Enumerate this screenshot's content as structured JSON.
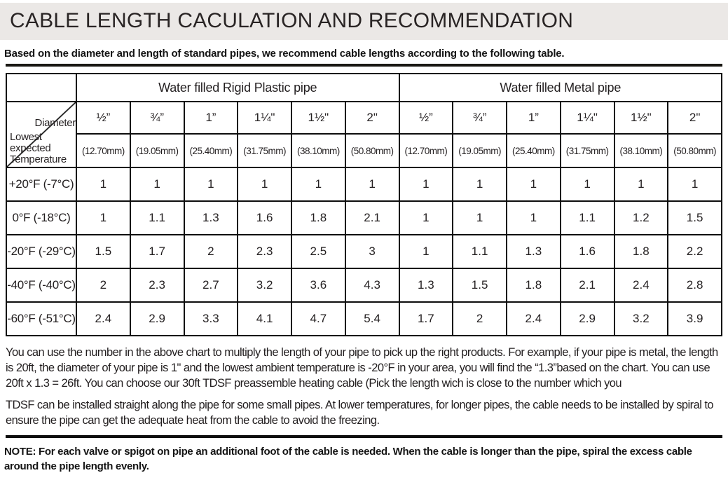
{
  "header": {
    "title": "CABLE LENGTH CACULATION AND RECOMMENDATION",
    "subtitle": "Based on the diameter and length of standard pipes, we recommend cable lengths according to the following  table."
  },
  "table": {
    "groups": [
      {
        "label": "Water filled Rigid Plastic pipe"
      },
      {
        "label": "Water filled Metal pipe"
      }
    ],
    "corner": {
      "diameter_label": "Diameter",
      "temperature_label": "Lowest expected Temperature"
    },
    "columns": [
      {
        "diameter": "½”",
        "mm": "(12.70mm)"
      },
      {
        "diameter": "¾”",
        "mm": "(19.05mm)"
      },
      {
        "diameter": "1”",
        "mm": "(25.40mm)"
      },
      {
        "diameter": "1¼\"",
        "mm": "(31.75mm)"
      },
      {
        "diameter": "1½\"",
        "mm": "(38.10mm)"
      },
      {
        "diameter": "2\"",
        "mm": "(50.80mm)"
      },
      {
        "diameter": "½”",
        "mm": "(12.70mm)"
      },
      {
        "diameter": "¾”",
        "mm": "(19.05mm)"
      },
      {
        "diameter": "1”",
        "mm": "(25.40mm)"
      },
      {
        "diameter": "1¼\"",
        "mm": "(31.75mm)"
      },
      {
        "diameter": "1½\"",
        "mm": "(38.10mm)"
      },
      {
        "diameter": "2\"",
        "mm": "(50.80mm)"
      }
    ],
    "rows": [
      {
        "label": "+20°F (-7°C)",
        "values": [
          "1",
          "1",
          "1",
          "1",
          "1",
          "1",
          "1",
          "1",
          "1",
          "1",
          "1",
          "1"
        ]
      },
      {
        "label": "0°F (-18°C)",
        "values": [
          "1",
          "1.1",
          "1.3",
          "1.6",
          "1.8",
          "2.1",
          "1",
          "1",
          "1",
          "1.1",
          "1.2",
          "1.5"
        ]
      },
      {
        "label": "-20°F (-29°C)",
        "values": [
          "1.5",
          "1.7",
          "2",
          "2.3",
          "2.5",
          "3",
          "1",
          "1.1",
          "1.3",
          "1.6",
          "1.8",
          "2.2"
        ]
      },
      {
        "label": "-40°F (-40°C)",
        "values": [
          "2",
          "2.3",
          "2.7",
          "3.2",
          "3.6",
          "4.3",
          "1.3",
          "1.5",
          "1.8",
          "2.1",
          "2.4",
          "2.8"
        ]
      },
      {
        "label": "-60°F (-51°C)",
        "values": [
          "2.4",
          "2.9",
          "3.3",
          "4.1",
          "4.7",
          "5.4",
          "1.7",
          "2",
          "2.4",
          "2.9",
          "3.2",
          "3.9"
        ]
      }
    ]
  },
  "footer": {
    "paragraph1": "You can use the number in the above chart to multiply the length of your pipe to pick up the right products. For example, if your pipe is metal, the length is 20ft, the diameter of your pipe is 1\" and the lowest ambient temperature is -20°F in your area, you will find the “1.3”based on the chart. You can use 20ft x 1.3 = 26ft. You can choose our 30ft TDSF preassemble heating cable (Pick the length wich is close to the number which you",
    "paragraph2": "TDSF can be installed straight along the pipe for some small pipes. At lower temperatures, for longer pipes, the cable needs to be installed by spiral to ensure the pipe can get the adequate heat from the cable to avoid the freezing.",
    "note": "NOTE: For each valve or spigot on pipe an additional foot of the cable is needed. When the cable is longer than the pipe, spiral the excess cable around the pipe length evenly."
  }
}
